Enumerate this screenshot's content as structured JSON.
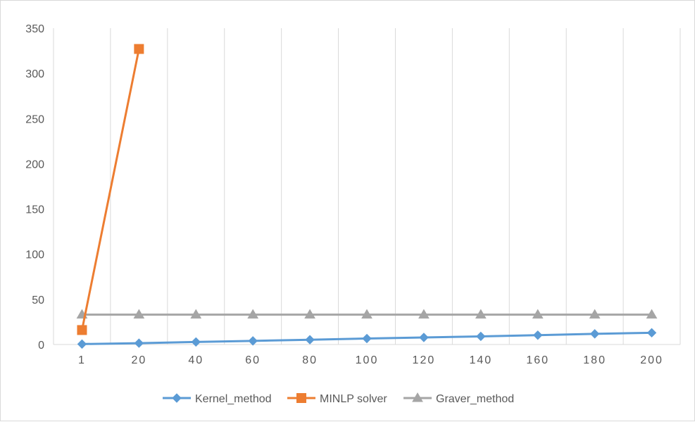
{
  "chart_data": {
    "type": "line",
    "title": "",
    "xlabel": "",
    "ylabel": "",
    "categories": [
      "1",
      "20",
      "40",
      "60",
      "80",
      "100",
      "120",
      "140",
      "160",
      "180",
      "200"
    ],
    "ylim": [
      0,
      350
    ],
    "yticks": [
      0,
      50,
      100,
      150,
      200,
      250,
      300,
      350
    ],
    "grid": "vertical",
    "legend_position": "bottom",
    "series": [
      {
        "name": "Kernel_method",
        "color": "#5b9bd5",
        "marker": "diamond",
        "values": [
          0.5,
          1.5,
          2.8,
          4.0,
          5.3,
          6.6,
          7.8,
          9.0,
          10.3,
          11.8,
          13.0
        ]
      },
      {
        "name": "MINLP solver",
        "color": "#ed7d31",
        "marker": "square",
        "values": [
          16,
          327,
          null,
          null,
          null,
          null,
          null,
          null,
          null,
          null,
          null
        ]
      },
      {
        "name": "Graver_method",
        "color": "#a5a5a5",
        "marker": "triangle",
        "values": [
          33,
          33,
          33,
          33,
          33,
          33,
          33,
          33,
          33,
          33,
          33
        ]
      }
    ]
  }
}
